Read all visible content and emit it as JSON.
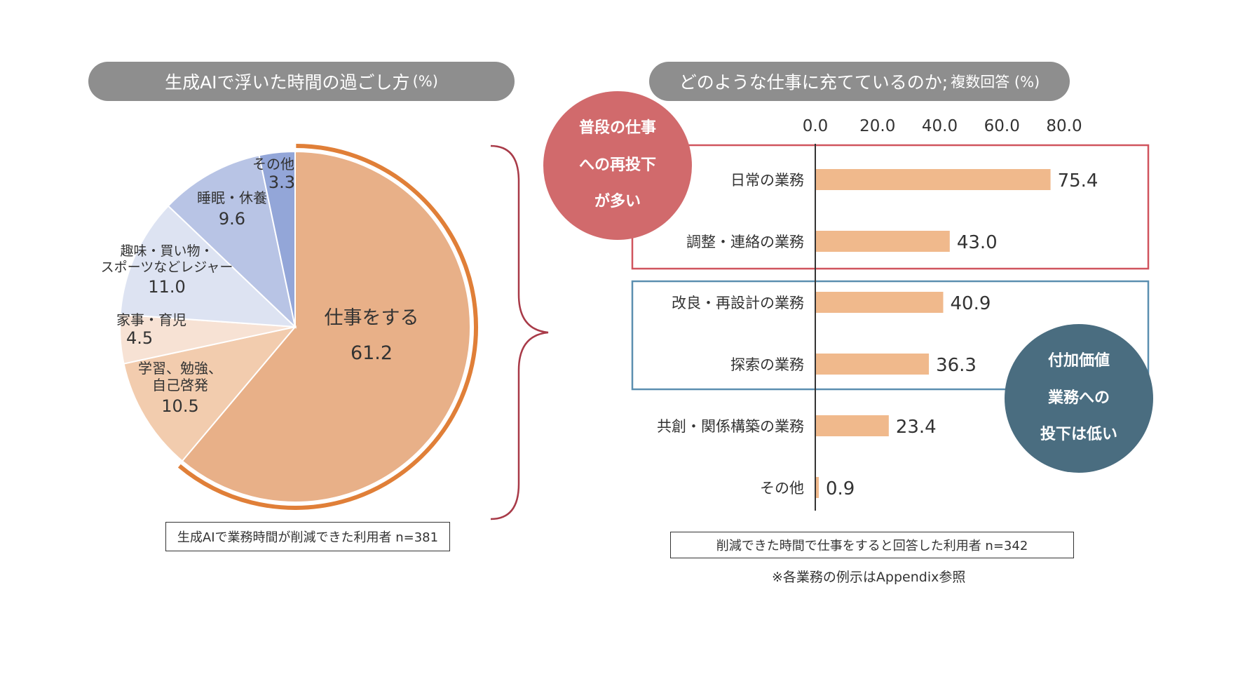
{
  "left_panel": {
    "title_main": "生成AIで浮いた時間の過ごし方",
    "title_unit": "(%)",
    "note": "生成AIで業務時間が削減できた利用者 n=381"
  },
  "right_panel": {
    "title_main": "どのような仕事に充てているのか;",
    "title_sub": "複数回答 (%)",
    "note": "削減できた時間で仕事をすると回答した利用者 n=342",
    "footnote": "※各業務の例示はAppendix参照",
    "callout_red": [
      "普段の仕事",
      "への再投下",
      "が多い"
    ],
    "callout_blue": [
      "付加価値",
      "業務への",
      "投下は低い"
    ]
  },
  "colors": {
    "work": "#e8b088",
    "work_outline": "#e07f38",
    "study": "#f2ccae",
    "housework": "#f7e2d4",
    "leisure": "#dde3f2",
    "sleep": "#b8c4e5",
    "other": "#93a6d8",
    "bar": "#f0b98c",
    "red_box": "#d0545e",
    "blue_box": "#5b8fb0",
    "red_circle": "#d16a6c",
    "blue_circle": "#4a6d80",
    "brace": "#a83a48",
    "pill": "#8e8e8e"
  },
  "chart_data": [
    {
      "type": "pie",
      "title": "生成AIで浮いた時間の過ごし方 (%)",
      "slices": [
        {
          "label": "仕事をする",
          "value": 61.2,
          "value_text": "61.2"
        },
        {
          "label": "学習、勉強、自己啓発",
          "value": 10.5,
          "value_text": "10.5"
        },
        {
          "label": "家事・育児",
          "value": 4.5,
          "value_text": "4.5"
        },
        {
          "label": "趣味・買い物・スポーツなどレジャー",
          "value": 11.0,
          "value_text": "11.0"
        },
        {
          "label": "睡眠・休養",
          "value": 9.6,
          "value_text": "9.6"
        },
        {
          "label": "その他",
          "value": 3.3,
          "value_text": "3.3"
        }
      ],
      "label_lines": {
        "study": [
          "学習、勉強、",
          "自己啓発"
        ],
        "housework": [
          "家事・育児"
        ],
        "leisure": [
          "趣味・買い物・",
          "スポーツなどレジャー"
        ],
        "sleep": [
          "睡眠・休養"
        ],
        "other": [
          "その他"
        ],
        "work": [
          "仕事をする"
        ]
      }
    },
    {
      "type": "bar",
      "orientation": "horizontal",
      "title": "どのような仕事に充てているのか; 複数回答 (%)",
      "categories": [
        "日常の業務",
        "調整・連絡の業務",
        "改良・再設計の業務",
        "探索の業務",
        "共創・関係構築の業務",
        "その他"
      ],
      "values": [
        75.4,
        43.0,
        40.9,
        36.3,
        23.4,
        0.9
      ],
      "value_labels": [
        "75.4",
        "43.0",
        "40.9",
        "36.3",
        "23.4",
        "0.9"
      ],
      "x_ticks": [
        "0.0",
        "20.0",
        "40.0",
        "60.0",
        "80.0"
      ],
      "xlim": [
        0,
        80
      ]
    }
  ]
}
